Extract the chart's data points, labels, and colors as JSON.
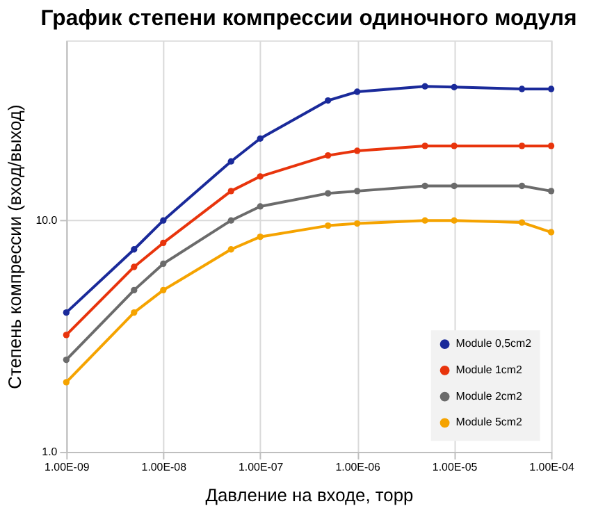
{
  "chart_data": {
    "type": "line",
    "title": "График степени компрессии одиночного модуля",
    "xlabel": "Давление на входе, торр",
    "ylabel": "Степень компрессии (вход/выход)",
    "x": [
      1e-09,
      5e-09,
      1e-08,
      5e-08,
      1e-07,
      5e-07,
      1e-06,
      5e-06,
      1e-05,
      5e-05,
      0.0001
    ],
    "series": [
      {
        "name": "Module 0,5cm2",
        "color": "#1a2a9a",
        "values": [
          4.0,
          7.5,
          10,
          18,
          22.6,
          33,
          36,
          38,
          37.7,
          37,
          37
        ]
      },
      {
        "name": "Module 1cm2",
        "color": "#e8340c",
        "values": [
          3.2,
          6.3,
          8.0,
          13.4,
          15.5,
          19.1,
          20,
          21,
          21,
          21,
          21
        ]
      },
      {
        "name": "Module 2cm2",
        "color": "#6b6b6b",
        "values": [
          2.5,
          5.0,
          6.5,
          10,
          11.5,
          13.1,
          13.4,
          14.1,
          14.1,
          14.1,
          13.4
        ]
      },
      {
        "name": "Module 5cm2",
        "color": "#f5a300",
        "values": [
          2.0,
          4.0,
          5.0,
          7.5,
          8.5,
          9.5,
          9.7,
          10,
          10,
          9.8,
          8.9
        ]
      }
    ],
    "log": "xy",
    "xlim": [
      1e-09,
      0.0001
    ],
    "ylim": [
      1,
      60
    ],
    "xticks": [
      {
        "value": 1e-09,
        "label": "1.00E-09"
      },
      {
        "value": 1e-08,
        "label": "1.00E-08"
      },
      {
        "value": 1e-07,
        "label": "1.00E-07"
      },
      {
        "value": 1e-06,
        "label": "1.00E-06"
      },
      {
        "value": 1e-05,
        "label": "1.00E-05"
      },
      {
        "value": 0.0001,
        "label": "1.00E-04"
      }
    ],
    "yticks": [
      {
        "value": 1,
        "label": "1.0"
      },
      {
        "value": 10,
        "label": "10.0"
      }
    ],
    "grid": true,
    "legend": "bottom right",
    "marker": "circle",
    "line_style": "solid"
  }
}
